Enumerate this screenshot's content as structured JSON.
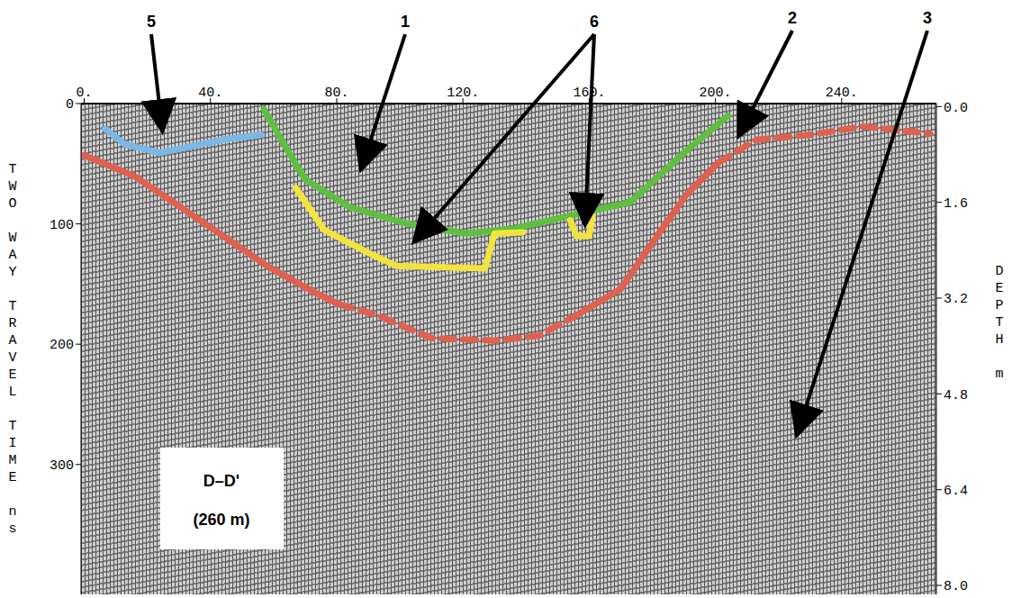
{
  "chart_data": {
    "type": "line",
    "y_label": "TWO WAY TRAVEL TIME ns",
    "y2_label": "DEPTH m",
    "xlim": [
      -1,
      270
    ],
    "xticks": [
      {
        "value": 0,
        "label": "0."
      },
      {
        "value": 40,
        "label": "40."
      },
      {
        "value": 80,
        "label": "80."
      },
      {
        "value": 120,
        "label": "120."
      },
      {
        "value": 160,
        "label": "160."
      },
      {
        "value": 200,
        "label": "200."
      },
      {
        "value": 240,
        "label": "240."
      }
    ],
    "ylim": [
      0,
      408
    ],
    "yticks": [
      0,
      100,
      200,
      300
    ],
    "y2lim": [
      -0.05,
      8.15
    ],
    "y2ticks": [
      {
        "value": 0,
        "label": "0.0"
      },
      {
        "value": 1.6,
        "label": "1.6"
      },
      {
        "value": 3.2,
        "label": "3.2"
      },
      {
        "value": 4.8,
        "label": "4.8"
      },
      {
        "value": 6.4,
        "label": "6.4"
      },
      {
        "value": 8,
        "label": "8.0"
      }
    ],
    "series": [
      {
        "color": "#7ab8e8",
        "line_style": "solid",
        "x": [
          6.6,
          13,
          24,
          44,
          56
        ],
        "values": [
          21,
          34,
          41,
          30,
          26
        ]
      },
      {
        "color": "#5fbf3f",
        "line_style": "solid",
        "x": [
          57,
          64,
          70,
          84,
          101,
          121,
          136,
          156,
          173,
          190,
          204
        ],
        "values": [
          5,
          37,
          63,
          86,
          99,
          108,
          104,
          92,
          82,
          41,
          10
        ]
      },
      {
        "color": "#f2e43c",
        "line_style": "solid",
        "x": [
          67,
          76,
          90,
          99,
          127,
          130,
          139
        ],
        "values": [
          70,
          105,
          124,
          135,
          137,
          108,
          107
        ]
      },
      {
        "color": "#f2e43c",
        "line_style": "solid",
        "x": [
          154,
          156,
          160,
          161
        ],
        "values": [
          97,
          110,
          110,
          94
        ]
      },
      {
        "color": "#e0604f",
        "line_style": "solid",
        "x": [
          0,
          15.7,
          30,
          44,
          58,
          73,
          81
        ],
        "values": [
          43,
          60,
          85,
          110,
          135,
          157,
          167
        ]
      },
      {
        "color": "#e0604f",
        "line_style": "dashed",
        "x": [
          81,
          93,
          110,
          130,
          144,
          156
        ],
        "values": [
          167,
          176,
          195,
          197,
          193,
          176
        ]
      },
      {
        "color": "#e0604f",
        "line_style": "solid",
        "x": [
          156,
          170,
          181,
          191,
          201
        ],
        "values": [
          176,
          154,
          112,
          75,
          49
        ]
      },
      {
        "color": "#e0604f",
        "line_style": "dashed",
        "x": [
          201,
          213,
          230,
          247,
          268
        ],
        "values": [
          49,
          30,
          26,
          19,
          25
        ]
      }
    ],
    "annotations": [
      "5",
      "1",
      "6",
      "2",
      "3"
    ],
    "box": [
      "D–D'",
      "(260 m)"
    ],
    "grid": false
  }
}
